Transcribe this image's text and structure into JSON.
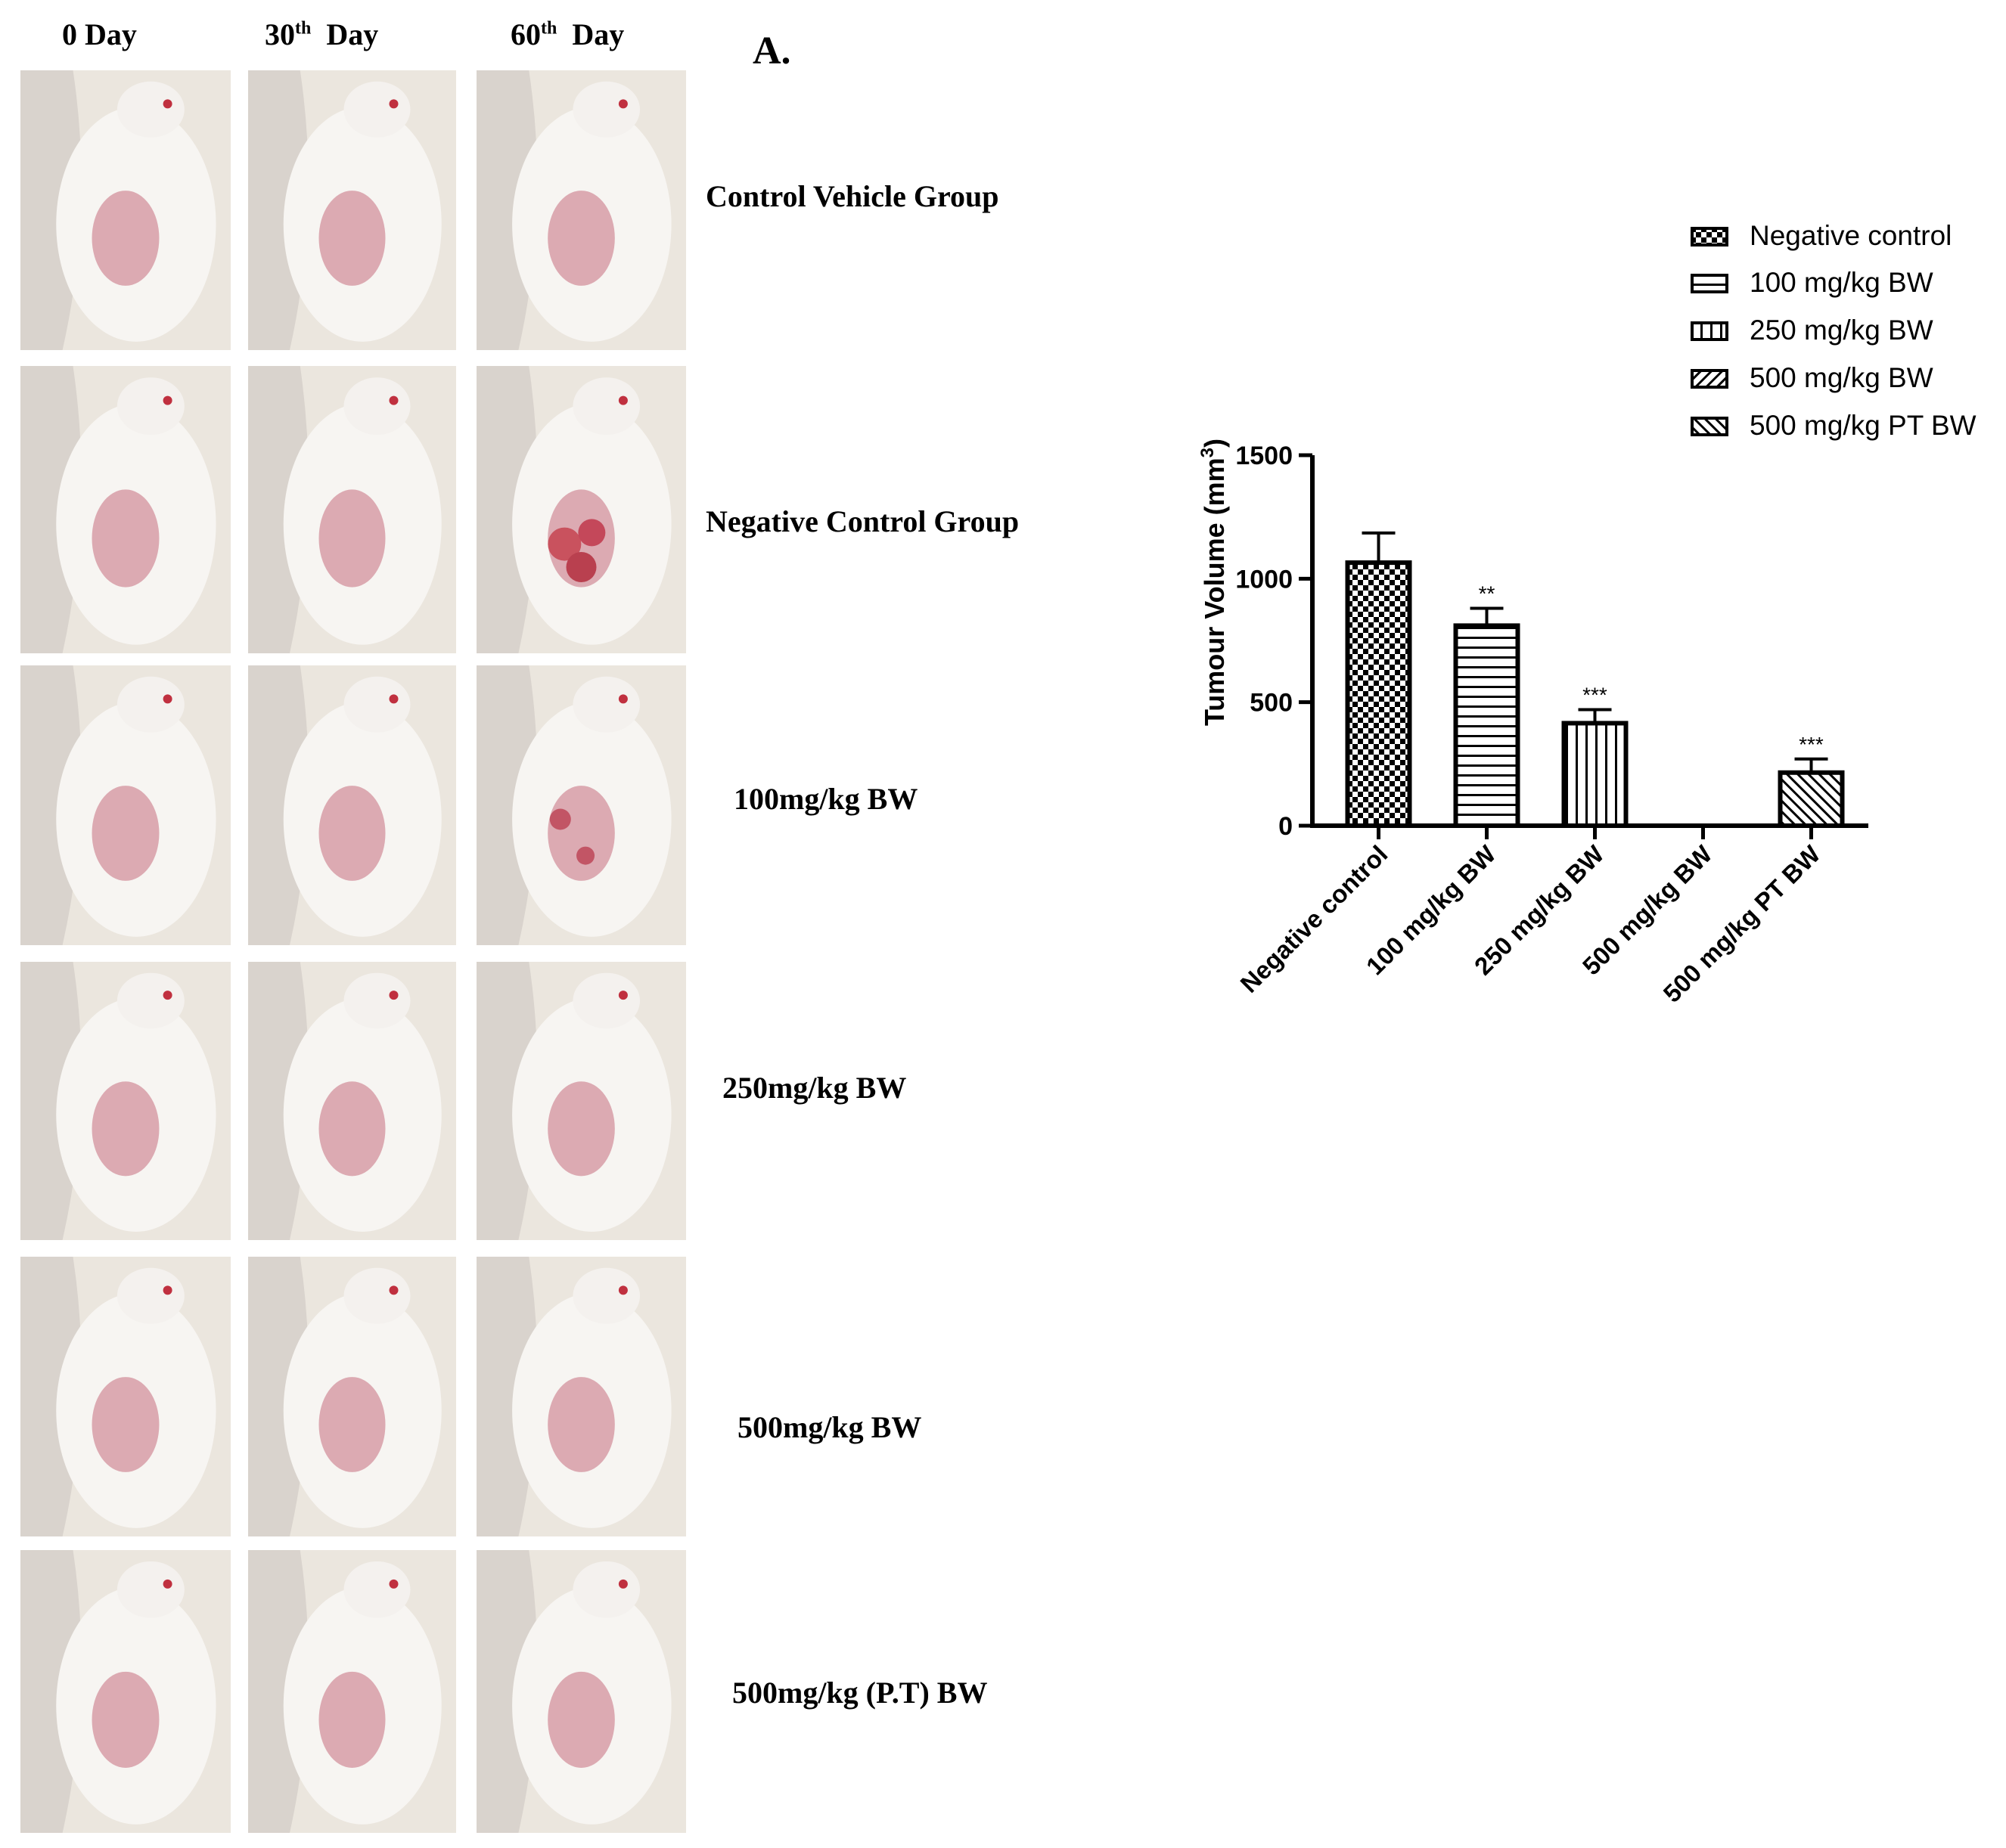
{
  "figure": {
    "column_headers": [
      {
        "main": "0 Day",
        "sup": ""
      },
      {
        "main": "30",
        "sup": "th",
        "tail": "  Day"
      },
      {
        "main": "60",
        "sup": "th",
        "tail": "  Day"
      }
    ],
    "panel_letter": "A.",
    "rows": [
      {
        "label": "Control Vehicle Group"
      },
      {
        "label": "Negative Control Group"
      },
      {
        "label": "100mg/kg BW"
      },
      {
        "label": "250mg/kg BW"
      },
      {
        "label": "500mg/kg BW"
      },
      {
        "label": "500mg/kg (P.T) BW"
      }
    ]
  },
  "chart_data": {
    "type": "bar",
    "title": "",
    "ylabel": "Tumour Volume (mm",
    "ylabel_sup": "3",
    "ylabel_tail": ")",
    "xlabel": "",
    "ylim": [
      0,
      1500
    ],
    "yticks": [
      0,
      500,
      1000,
      1500
    ],
    "categories": [
      "Negative control",
      "100 mg/kg BW",
      "250 mg/kg BW",
      "500 mg/kg BW",
      "500 mg/kg PT BW"
    ],
    "values": [
      1065,
      810,
      415,
      0,
      215
    ],
    "errors": [
      120,
      70,
      55,
      0,
      55
    ],
    "significance": [
      "",
      "**",
      "***",
      "",
      "***"
    ],
    "patterns": [
      "checker",
      "horizontal",
      "vertical",
      "diag-up",
      "diag-down"
    ],
    "legend": {
      "position": "top-right",
      "entries": [
        "Negative control",
        "100 mg/kg BW",
        "250 mg/kg BW",
        "500 mg/kg BW",
        "500 mg/kg PT BW"
      ]
    },
    "grid": false,
    "colors": {
      "bar_stroke": "#000000",
      "fill": "#ffffff"
    }
  }
}
